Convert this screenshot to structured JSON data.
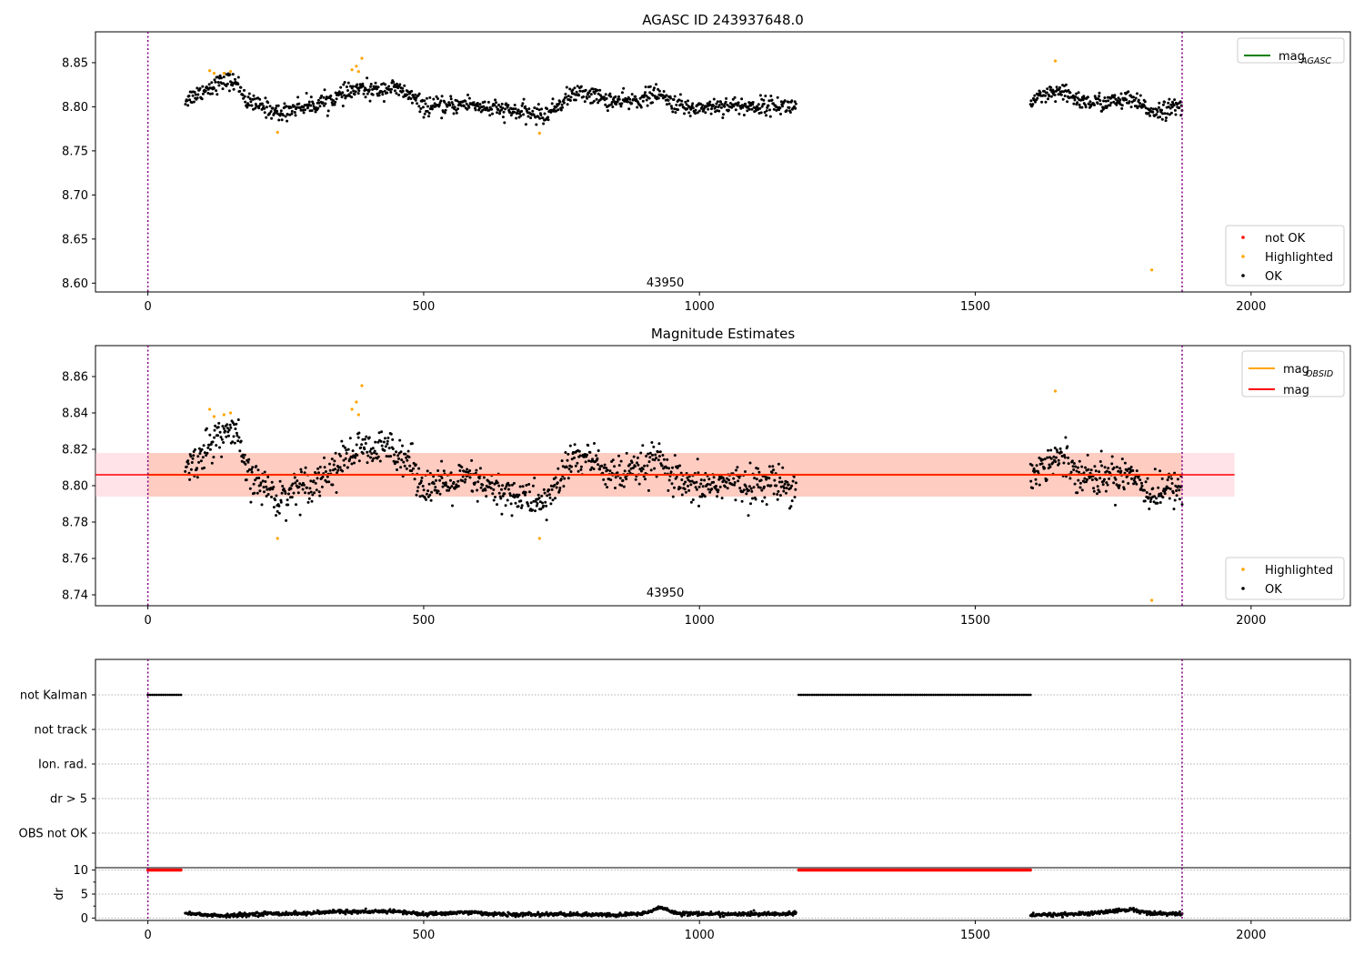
{
  "chart_data": [
    {
      "type": "scatter",
      "title": "AGASC ID 243937648.0",
      "xlim": [
        -95,
        2180
      ],
      "ylim": [
        8.59,
        8.885
      ],
      "xticks": [
        0,
        500,
        1000,
        1500,
        2000
      ],
      "yticks": [
        8.6,
        8.65,
        8.7,
        8.75,
        8.8,
        8.85
      ],
      "ytick_labels": [
        "8.60",
        "8.65",
        "8.70",
        "8.75",
        "8.80",
        "8.85"
      ],
      "annotation": {
        "text": "43950",
        "x": 938,
        "y": 8.596
      },
      "vlines": [
        0,
        1875
      ],
      "legend_lines": [
        {
          "label_main": "mag",
          "label_sub": "AGASC",
          "color": "#008000"
        }
      ],
      "legend_points": [
        {
          "label": "not OK",
          "color": "#ff0000"
        },
        {
          "label": "Highlighted",
          "color": "#ffa500"
        },
        {
          "label": "OK",
          "color": "#000000"
        }
      ],
      "series": [
        {
          "name": "OK",
          "color": "#000000",
          "segments": [
            {
              "x": [
                68,
                90,
                120,
                145,
                165,
                180,
                210,
                240,
                270,
                300,
                330,
                360,
                380,
                410,
                440,
                470,
                500,
                540,
                580,
                620,
                660,
                700,
                720,
                740,
                770,
                800,
                830,
                860,
                890,
                920,
                950,
                980,
                1010,
                1050,
                1090,
                1130,
                1175
              ],
              "y": [
                8.808,
                8.815,
                8.825,
                8.83,
                8.825,
                8.805,
                8.8,
                8.792,
                8.8,
                8.802,
                8.808,
                8.815,
                8.82,
                8.818,
                8.822,
                8.815,
                8.8,
                8.8,
                8.804,
                8.798,
                8.795,
                8.792,
                8.79,
                8.8,
                8.815,
                8.815,
                8.808,
                8.805,
                8.808,
                8.815,
                8.805,
                8.798,
                8.8,
                8.802,
                8.8,
                8.802,
                8.8
              ],
              "spread": 0.009,
              "n": 1000
            },
            {
              "x": [
                1600,
                1640,
                1660,
                1700,
                1740,
                1780,
                1820,
                1875
              ],
              "y": [
                8.805,
                8.815,
                8.815,
                8.805,
                8.805,
                8.808,
                8.795,
                8.8
              ],
              "spread": 0.009,
              "n": 260
            }
          ]
        },
        {
          "name": "Highlighted",
          "color": "#ffa500",
          "points": [
            [
              112,
              8.841
            ],
            [
              120,
              8.838
            ],
            [
              138,
              8.838
            ],
            [
              150,
              8.84
            ],
            [
              235,
              8.771
            ],
            [
              370,
              8.842
            ],
            [
              378,
              8.846
            ],
            [
              382,
              8.84
            ],
            [
              388,
              8.855
            ],
            [
              710,
              8.77
            ],
            [
              1645,
              8.852
            ],
            [
              1820,
              8.615
            ]
          ]
        }
      ]
    },
    {
      "type": "scatter",
      "title": "Magnitude Estimates",
      "xlim": [
        -95,
        2180
      ],
      "ylim": [
        8.734,
        8.877
      ],
      "xticks": [
        0,
        500,
        1000,
        1500,
        2000
      ],
      "yticks": [
        8.74,
        8.76,
        8.78,
        8.8,
        8.82,
        8.84,
        8.86
      ],
      "ytick_labels": [
        "8.74",
        "8.76",
        "8.78",
        "8.80",
        "8.82",
        "8.84",
        "8.86"
      ],
      "annotation": {
        "text": "43950",
        "x": 938,
        "y": 8.739
      },
      "vlines": [
        0,
        1875
      ],
      "bands": [
        {
          "x0": -95,
          "x1": 1970,
          "y0": 8.794,
          "y1": 8.818,
          "color": "#ffc0cb",
          "alpha": 0.45
        },
        {
          "x0": 0,
          "x1": 1875,
          "y0": 8.794,
          "y1": 8.818,
          "color": "#ffa07a",
          "alpha": 0.35
        }
      ],
      "hlines": [
        {
          "x0": 0,
          "x1": 1875,
          "y": 8.806,
          "color": "#ffa500",
          "width": 2.2
        },
        {
          "x0": -95,
          "x1": 1970,
          "y": 8.806,
          "color": "#ff0000",
          "width": 1.6
        }
      ],
      "legend_lines": [
        {
          "label_main": "mag",
          "label_sub": "OBSID",
          "color": "#ffa500"
        },
        {
          "label_main": "mag",
          "label_sub": "",
          "color": "#ff0000"
        }
      ],
      "legend_points": [
        {
          "label": "Highlighted",
          "color": "#ffa500"
        },
        {
          "label": "OK",
          "color": "#000000"
        }
      ],
      "series": [
        {
          "name": "OK",
          "color": "#000000",
          "segments": [
            {
              "x": [
                68,
                90,
                120,
                145,
                165,
                180,
                210,
                240,
                270,
                300,
                330,
                360,
                380,
                410,
                440,
                470,
                500,
                540,
                580,
                620,
                660,
                700,
                720,
                740,
                770,
                800,
                830,
                860,
                890,
                920,
                950,
                980,
                1010,
                1050,
                1090,
                1130,
                1175
              ],
              "y": [
                8.808,
                8.815,
                8.825,
                8.83,
                8.825,
                8.805,
                8.8,
                8.792,
                8.8,
                8.802,
                8.808,
                8.815,
                8.82,
                8.818,
                8.822,
                8.815,
                8.8,
                8.8,
                8.804,
                8.798,
                8.795,
                8.792,
                8.79,
                8.8,
                8.815,
                8.815,
                8.808,
                8.805,
                8.808,
                8.815,
                8.805,
                8.798,
                8.8,
                8.802,
                8.8,
                8.802,
                8.8
              ],
              "spread": 0.009,
              "n": 1000
            },
            {
              "x": [
                1600,
                1640,
                1660,
                1700,
                1740,
                1780,
                1820,
                1875
              ],
              "y": [
                8.805,
                8.815,
                8.815,
                8.805,
                8.805,
                8.808,
                8.795,
                8.8
              ],
              "spread": 0.009,
              "n": 260
            }
          ]
        },
        {
          "name": "Highlighted",
          "color": "#ffa500",
          "points": [
            [
              112,
              8.842
            ],
            [
              120,
              8.838
            ],
            [
              138,
              8.839
            ],
            [
              150,
              8.84
            ],
            [
              235,
              8.771
            ],
            [
              370,
              8.842
            ],
            [
              378,
              8.846
            ],
            [
              382,
              8.839
            ],
            [
              388,
              8.855
            ],
            [
              710,
              8.771
            ],
            [
              1645,
              8.852
            ],
            [
              1820,
              8.737
            ]
          ]
        }
      ]
    },
    {
      "type": "scatter",
      "xlim": [
        -95,
        2180
      ],
      "categories": [
        "not Kalman",
        "not track",
        "Ion. rad.",
        "dr > 5",
        "OBS not OK"
      ],
      "xticks": [
        0,
        500,
        1000,
        1500,
        2000
      ],
      "vlines": [
        0,
        1875
      ],
      "flag_segments": [
        {
          "category": "not Kalman",
          "ranges": [
            [
              0,
              62
            ],
            [
              1180,
              1600
            ]
          ]
        }
      ]
    },
    {
      "type": "scatter",
      "xlim": [
        -95,
        2180
      ],
      "ylim": [
        -0.5,
        10.5
      ],
      "ylabel": "dr",
      "yticks": [
        0,
        5,
        10
      ],
      "ytick_labels": [
        "0",
        "5",
        "10"
      ],
      "xticks": [
        0,
        500,
        1000,
        1500,
        2000
      ],
      "xtick_labels": [
        "0",
        "500",
        "1000",
        "1500",
        "2000"
      ],
      "vlines": [
        0,
        1875
      ],
      "capped": {
        "value": 10,
        "color": "#ff0000",
        "ranges": [
          [
            0,
            62
          ],
          [
            1180,
            1600
          ]
        ]
      },
      "series": [
        {
          "name": "dr",
          "color": "#000000",
          "segments": [
            {
              "x": [
                68,
                140,
                200,
                300,
                350,
                400,
                440,
                500,
                580,
                650,
                750,
                850,
                900,
                930,
                960,
                1050,
                1175
              ],
              "y": [
                1.0,
                0.4,
                0.9,
                1.0,
                1.4,
                1.2,
                1.5,
                0.8,
                1.2,
                0.7,
                0.8,
                0.6,
                1.0,
                2.2,
                1.0,
                0.8,
                0.9
              ],
              "spread": 0.35,
              "n": 1000
            },
            {
              "x": [
                1600,
                1700,
                1780,
                1820,
                1875
              ],
              "y": [
                0.6,
                0.9,
                1.8,
                1.0,
                0.8
              ],
              "spread": 0.35,
              "n": 260
            }
          ]
        }
      ]
    }
  ]
}
